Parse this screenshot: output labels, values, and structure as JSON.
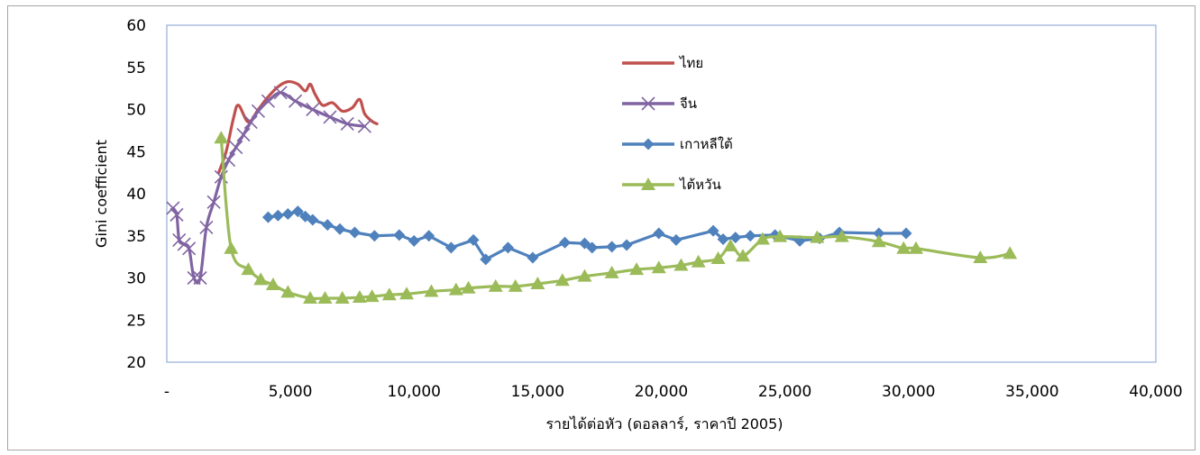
{
  "chart_data": {
    "type": "line",
    "xlabel": "รายได้ต่อหัว (ดอลลาร์, ราคาปี 2005)",
    "ylabel": "Gini coefficient",
    "xlim": [
      0,
      40000
    ],
    "ylim": [
      20,
      60
    ],
    "x_ticks": [
      0,
      5000,
      10000,
      15000,
      20000,
      25000,
      30000,
      35000,
      40000
    ],
    "x_tick_labels": [
      "-",
      "5,000",
      "10,000",
      "15,000",
      "20,000",
      "25,000",
      "30,000",
      "35,000",
      "40,000"
    ],
    "y_ticks": [
      20,
      25,
      30,
      35,
      40,
      45,
      50,
      55,
      60
    ],
    "y_tick_labels": [
      "20",
      "25",
      "30",
      "35",
      "40",
      "45",
      "50",
      "55",
      "60"
    ],
    "grid": false,
    "legend_position": "top-center",
    "series": [
      {
        "name": "ไทย",
        "color": "#c0504d",
        "marker": "none",
        "smooth": true,
        "points": [
          [
            2100,
            42.5
          ],
          [
            2400,
            45
          ],
          [
            2700,
            49
          ],
          [
            2900,
            50.5
          ],
          [
            3300,
            48.5
          ],
          [
            3700,
            50
          ],
          [
            4100,
            51.5
          ],
          [
            4500,
            52.7
          ],
          [
            4900,
            53.3
          ],
          [
            5300,
            53
          ],
          [
            5600,
            52.2
          ],
          [
            5800,
            53
          ],
          [
            6000,
            51.8
          ],
          [
            6300,
            50.5
          ],
          [
            6700,
            50.8
          ],
          [
            7100,
            49.8
          ],
          [
            7500,
            50.2
          ],
          [
            7800,
            51.2
          ],
          [
            8000,
            49.5
          ],
          [
            8300,
            48.6
          ],
          [
            8500,
            48.3
          ]
        ]
      },
      {
        "name": "จีน",
        "color": "#8064a2",
        "marker": "x",
        "smooth": true,
        "points": [
          [
            250,
            38.3
          ],
          [
            400,
            37.5
          ],
          [
            500,
            34.5
          ],
          [
            700,
            34
          ],
          [
            900,
            33.5
          ],
          [
            1100,
            30
          ],
          [
            1350,
            30
          ],
          [
            1600,
            36
          ],
          [
            1900,
            39
          ],
          [
            2200,
            42
          ],
          [
            2500,
            44
          ],
          [
            2800,
            45.5
          ],
          [
            3100,
            47
          ],
          [
            3400,
            48.5
          ],
          [
            3700,
            49.8
          ],
          [
            4100,
            51
          ],
          [
            4600,
            52
          ],
          [
            5200,
            51
          ],
          [
            5900,
            50
          ],
          [
            6600,
            49.1
          ],
          [
            7300,
            48.3
          ],
          [
            8000,
            48
          ]
        ]
      },
      {
        "name": "เกาหลีใต้",
        "color": "#4f81bd",
        "marker": "diamond",
        "smooth": false,
        "points": [
          [
            4100,
            37.2
          ],
          [
            4500,
            37.4
          ],
          [
            4900,
            37.6
          ],
          [
            5300,
            37.9
          ],
          [
            5600,
            37.3
          ],
          [
            5900,
            36.9
          ],
          [
            6500,
            36.3
          ],
          [
            7000,
            35.8
          ],
          [
            7600,
            35.4
          ],
          [
            8400,
            35
          ],
          [
            9400,
            35.1
          ],
          [
            10000,
            34.4
          ],
          [
            10600,
            35
          ],
          [
            11500,
            33.6
          ],
          [
            12400,
            34.5
          ],
          [
            12900,
            32.2
          ],
          [
            13800,
            33.6
          ],
          [
            14800,
            32.4
          ],
          [
            16100,
            34.2
          ],
          [
            16900,
            34.1
          ],
          [
            17200,
            33.6
          ],
          [
            18000,
            33.7
          ],
          [
            18600,
            33.9
          ],
          [
            19900,
            35.3
          ],
          [
            20600,
            34.5
          ],
          [
            22100,
            35.6
          ],
          [
            22500,
            34.6
          ],
          [
            23000,
            34.8
          ],
          [
            23600,
            35
          ],
          [
            24600,
            35.1
          ],
          [
            25600,
            34.4
          ],
          [
            26400,
            34.7
          ],
          [
            27200,
            35.4
          ],
          [
            28800,
            35.3
          ],
          [
            29900,
            35.3
          ]
        ]
      },
      {
        "name": "ไต้หวัน",
        "color": "#9bbb59",
        "marker": "triangle",
        "smooth": true,
        "points": [
          [
            2200,
            46.6
          ],
          [
            2600,
            33.5
          ],
          [
            3300,
            31
          ],
          [
            3800,
            29.8
          ],
          [
            4300,
            29.2
          ],
          [
            4900,
            28.3
          ],
          [
            5800,
            27.6
          ],
          [
            6400,
            27.6
          ],
          [
            7100,
            27.6
          ],
          [
            7800,
            27.7
          ],
          [
            8300,
            27.8
          ],
          [
            9000,
            28
          ],
          [
            9700,
            28.1
          ],
          [
            10700,
            28.4
          ],
          [
            11700,
            28.6
          ],
          [
            12200,
            28.8
          ],
          [
            13300,
            29
          ],
          [
            14100,
            29
          ],
          [
            15000,
            29.3
          ],
          [
            16000,
            29.7
          ],
          [
            16900,
            30.2
          ],
          [
            18000,
            30.6
          ],
          [
            19000,
            31
          ],
          [
            19900,
            31.2
          ],
          [
            20800,
            31.5
          ],
          [
            21500,
            31.9
          ],
          [
            22300,
            32.3
          ],
          [
            22800,
            33.8
          ],
          [
            23300,
            32.6
          ],
          [
            24100,
            34.6
          ],
          [
            24800,
            34.9
          ],
          [
            26300,
            34.8
          ],
          [
            27300,
            34.9
          ],
          [
            28800,
            34.3
          ],
          [
            29800,
            33.5
          ],
          [
            30300,
            33.5
          ],
          [
            32900,
            32.4
          ],
          [
            34100,
            32.9
          ]
        ]
      }
    ]
  }
}
